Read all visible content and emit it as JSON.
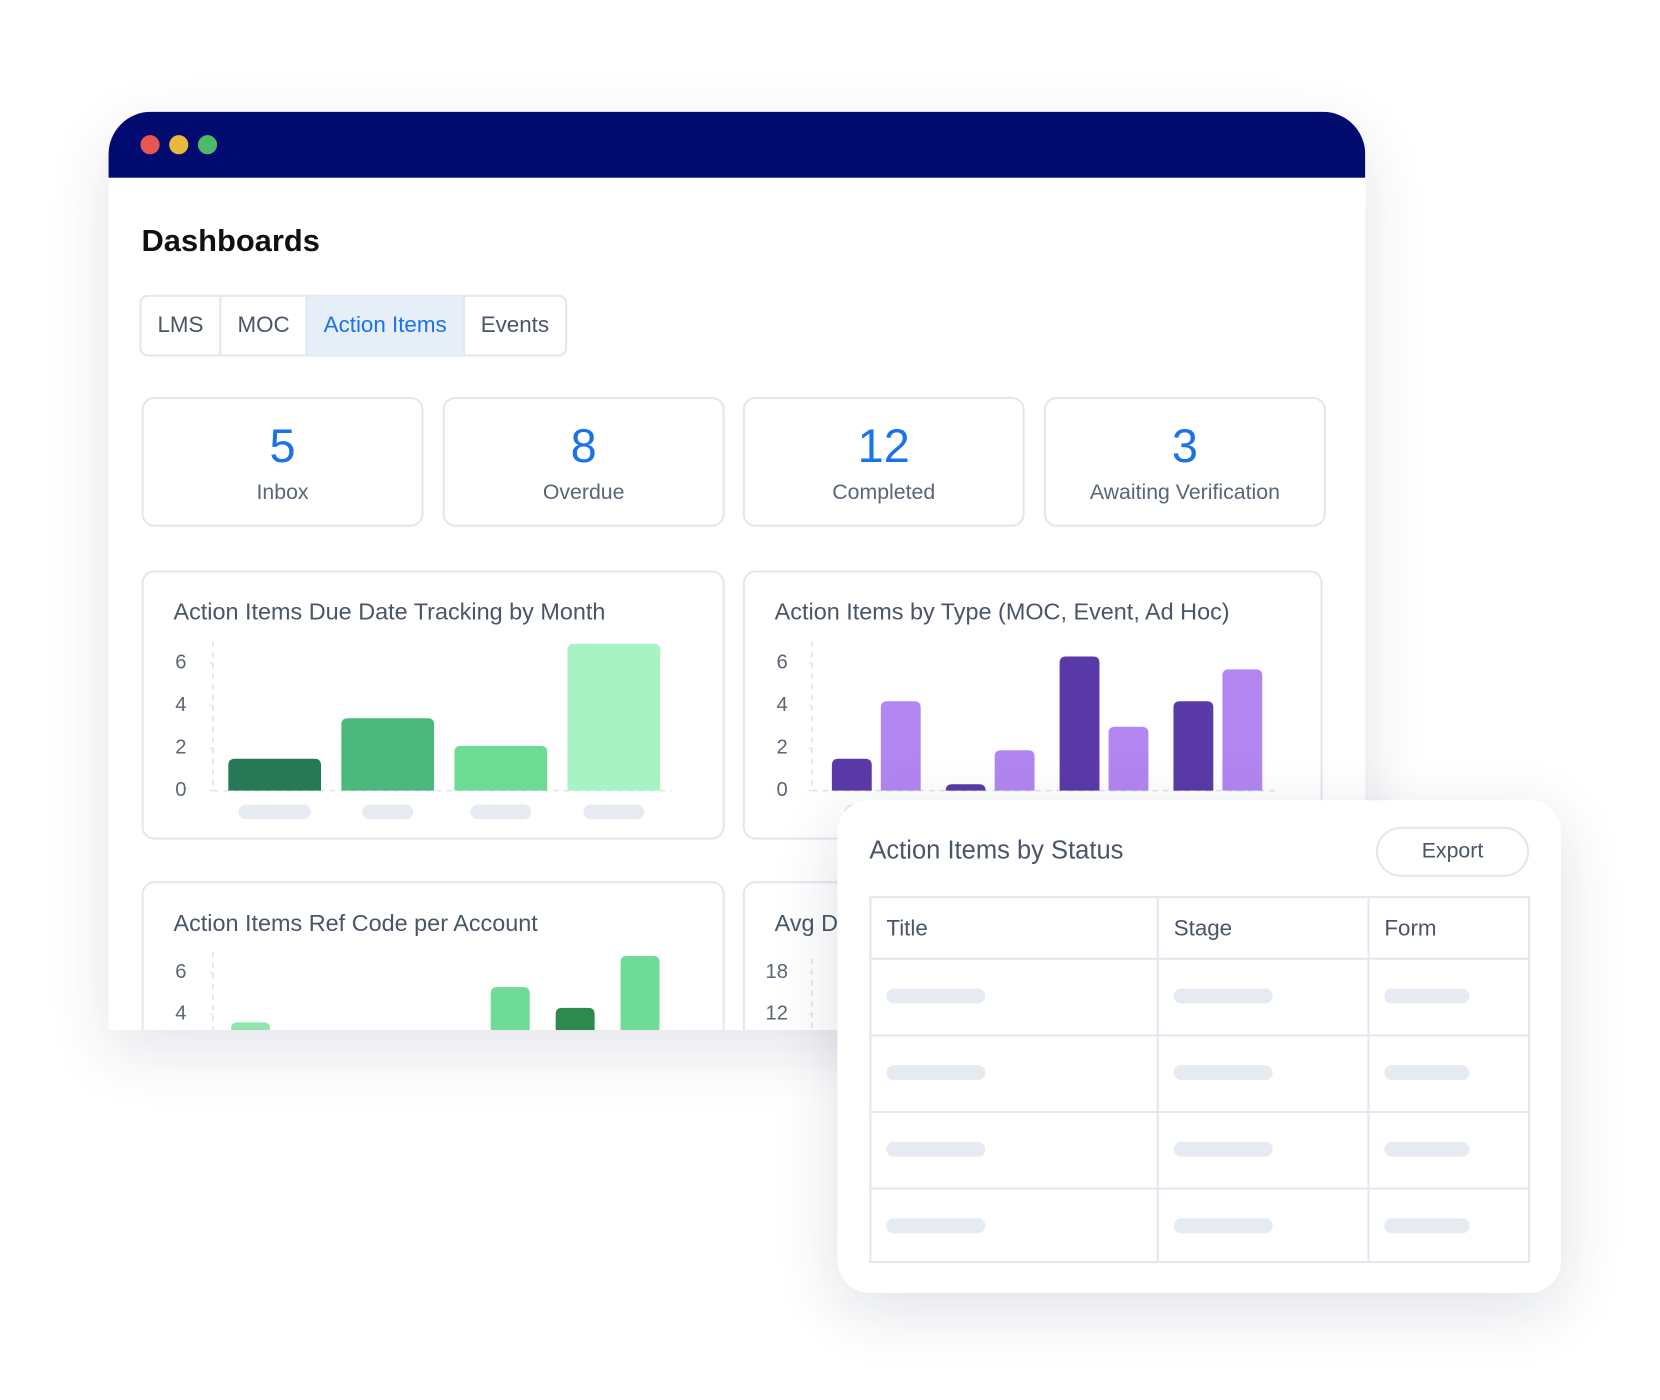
{
  "window": {
    "title": "Dashboards",
    "tabs": [
      "LMS",
      "MOC",
      "Action Items",
      "Events"
    ],
    "active_tab": 2
  },
  "stats": [
    {
      "value": 5,
      "label": "Inbox"
    },
    {
      "value": 8,
      "label": "Overdue"
    },
    {
      "value": 12,
      "label": "Completed"
    },
    {
      "value": 3,
      "label": "Awaiting Verification"
    }
  ],
  "charts": [
    {
      "type": "bar",
      "title": "Action Items Due Date Tracking by Month",
      "categories": [
        null,
        null,
        null,
        null
      ],
      "values": [
        1.5,
        3.4,
        2.1,
        6.9
      ],
      "colors": [
        "#267856",
        "#4cb97c",
        "#6ddb94",
        "#a8f2c4"
      ],
      "ylim": [
        0,
        7
      ],
      "yticks": [
        0,
        2,
        4,
        6
      ]
    },
    {
      "type": "grouped-bar",
      "title": "Action Items by Type (MOC, Event, Ad Hoc)",
      "categories": [
        null,
        null,
        null,
        null
      ],
      "series": [
        {
          "color": "#5a3aa8",
          "values": [
            1.5,
            0.3,
            6.3,
            4.2
          ]
        },
        {
          "color": "#b286f0",
          "values": [
            4.2,
            1.9,
            3.0,
            5.7
          ]
        }
      ],
      "ylim": [
        0,
        7
      ],
      "yticks": [
        0,
        2,
        4,
        6
      ]
    },
    {
      "type": "bar",
      "title": "Action Items Ref Code per Account",
      "categories": [
        null,
        null,
        null,
        null,
        null,
        null,
        null
      ],
      "values": [
        3.6,
        null,
        null,
        null,
        5.3,
        4.3,
        6.8
      ],
      "colors": [
        "#8fe5ad",
        null,
        null,
        null,
        "#6edb96",
        "#2d8a4f",
        "#6edb96"
      ],
      "ylim": [
        0,
        7
      ],
      "yticks": [
        4,
        6
      ]
    },
    {
      "type": "bar",
      "title": "Avg D",
      "categories": [],
      "values": [],
      "colors": [],
      "ylim": [
        0,
        20
      ],
      "yticks": [
        12,
        18
      ]
    }
  ],
  "table": {
    "title": "Action Items by Status",
    "button": "Export",
    "columns": [
      "Title",
      "Stage",
      "Form"
    ],
    "row_count": 4
  }
}
